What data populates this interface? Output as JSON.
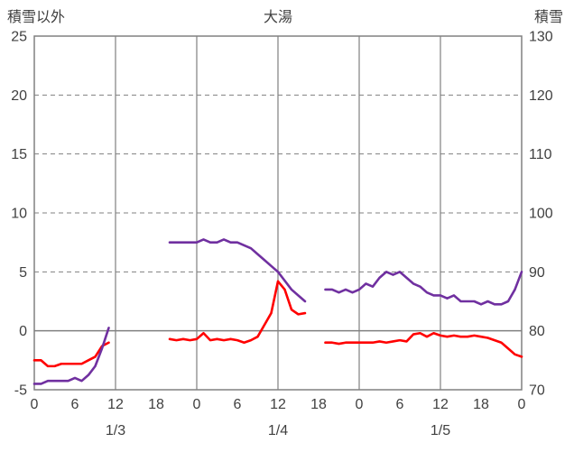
{
  "header": {
    "left_axis_title": "積雪以外",
    "chart_title": "大湯",
    "right_axis_title": "積雪"
  },
  "colors": {
    "background": "#FFFFFF",
    "text": "#404040",
    "grid": "#808080",
    "red_series": "#FF0000",
    "purple_series": "#7030A0"
  },
  "chart_data": {
    "type": "line",
    "title": "大湯",
    "left_axis": {
      "label": "積雪以外",
      "min": -5,
      "max": 25,
      "ticks": [
        -5,
        0,
        5,
        10,
        15,
        20,
        25
      ]
    },
    "right_axis": {
      "label": "積雪",
      "min": 70,
      "max": 130,
      "ticks": [
        70,
        80,
        90,
        100,
        110,
        120,
        130
      ]
    },
    "x_axis": {
      "total_hours": 72,
      "hour_tick_interval": 6,
      "hour_labels": [
        "0",
        "6",
        "12",
        "18",
        "0",
        "6",
        "12",
        "18",
        "0",
        "6",
        "12",
        "18",
        "0"
      ],
      "day_labels": [
        "1/3",
        "1/4",
        "1/5"
      ],
      "day_label_center_hours": [
        12,
        36,
        60
      ],
      "vertical_gridline_hours": [
        12,
        24,
        36,
        48,
        60
      ]
    },
    "grid": {
      "horizontal_dashed_ticks": [
        5,
        10,
        15,
        20
      ],
      "zero_line_value": 0,
      "color": "#808080",
      "legend": "none"
    },
    "series": [
      {
        "name": "red-line",
        "axis": "left",
        "color": "#FF0000",
        "values": [
          -2.5,
          -2.5,
          -3,
          -3,
          -2.8,
          -2.8,
          -2.8,
          -2.8,
          -2.5,
          -2.2,
          -1.3,
          -1,
          null,
          null,
          null,
          null,
          null,
          null,
          null,
          null,
          -0.7,
          -0.8,
          -0.7,
          -0.8,
          -0.7,
          -0.2,
          -0.8,
          -0.7,
          -0.8,
          -0.7,
          -0.8,
          -1,
          -0.8,
          -0.5,
          0.5,
          1.5,
          4.2,
          3.5,
          1.8,
          1.4,
          1.5,
          null,
          null,
          -1,
          -1,
          -1.1,
          -1,
          -1,
          -1,
          -1,
          -1,
          -0.9,
          -1,
          -0.9,
          -0.8,
          -0.9,
          -0.3,
          -0.2,
          -0.5,
          -0.2,
          -0.4,
          -0.5,
          -0.4,
          -0.5,
          -0.5,
          -0.4,
          -0.5,
          -0.6,
          -0.8,
          -1,
          -1.5,
          -2,
          -2.2
        ]
      },
      {
        "name": "purple-line",
        "axis": "right",
        "color": "#7030A0",
        "values": [
          71,
          71,
          71.5,
          71.5,
          71.5,
          71.5,
          72,
          71.5,
          72.5,
          74,
          77,
          80.5,
          null,
          null,
          null,
          null,
          null,
          null,
          null,
          null,
          95,
          95,
          95,
          95,
          95,
          95.5,
          95,
          95,
          95.5,
          95,
          95,
          94.5,
          94,
          93,
          92,
          91,
          90,
          88.5,
          87,
          86,
          85,
          null,
          null,
          87,
          87,
          86.5,
          87,
          86.5,
          87,
          88,
          87.5,
          89,
          90,
          89.5,
          90,
          89,
          88,
          87.5,
          86.5,
          86,
          86,
          85.5,
          86,
          85,
          85,
          85,
          84.5,
          85,
          84.5,
          84.5,
          85,
          87,
          90
        ]
      }
    ]
  }
}
